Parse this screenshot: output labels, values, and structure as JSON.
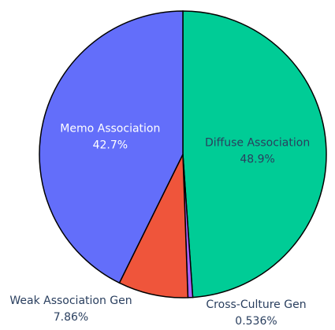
{
  "chart_data": {
    "type": "pie",
    "categories": [
      "Diffuse Association",
      "Cross-Culture Gen",
      "Weak Association Gen",
      "Memo Association"
    ],
    "values": [
      48.9,
      0.536,
      7.86,
      42.7
    ],
    "value_labels": [
      "48.9%",
      "0.536%",
      "7.86%",
      "42.7%"
    ],
    "colors": [
      "#00cc96",
      "#ab63fa",
      "#ef553b",
      "#636efa"
    ]
  }
}
